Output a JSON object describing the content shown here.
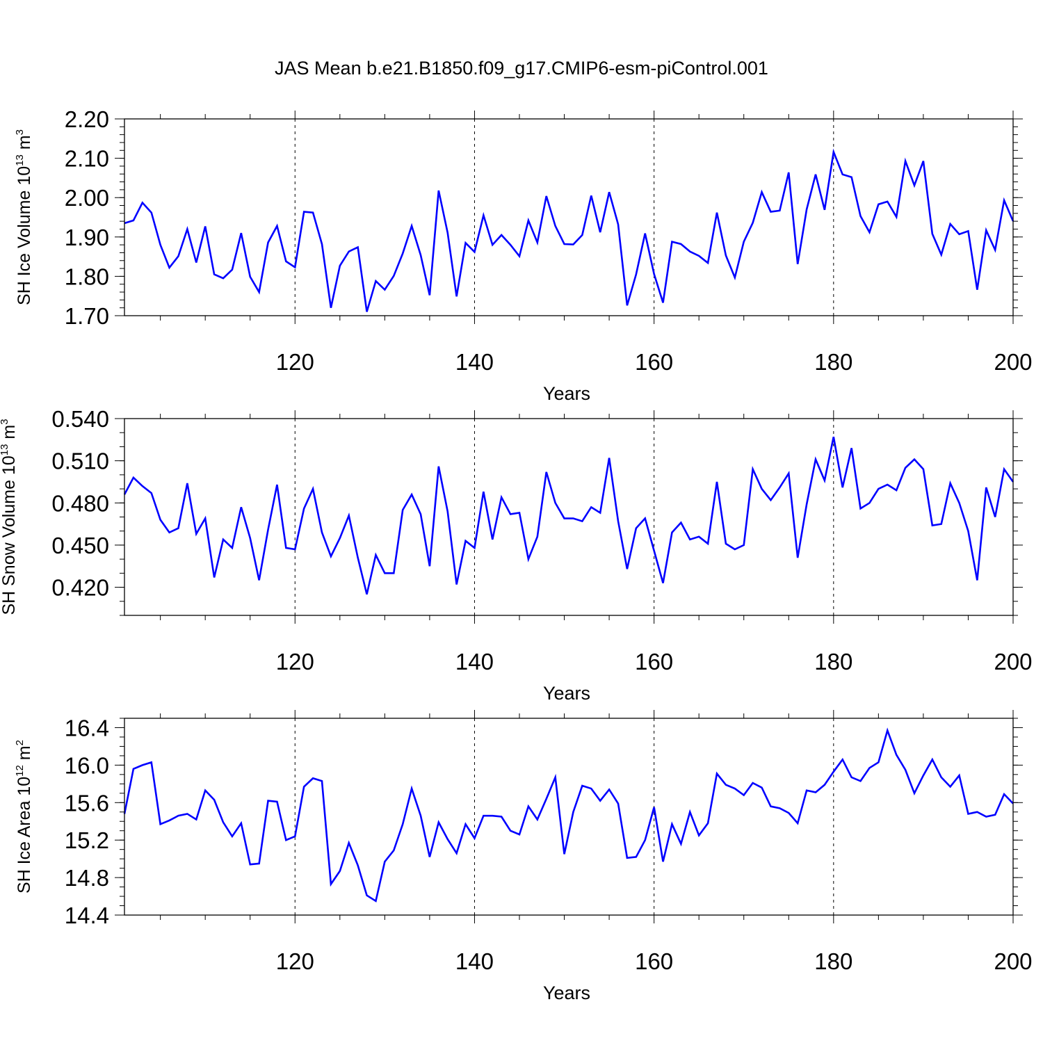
{
  "title": "JAS Mean b.e21.B1850.f09_g17.CMIP6-esm-piControl.001",
  "line_color": "#0000ff",
  "chart_data": [
    {
      "type": "line",
      "ylabel_parts": [
        "SH Ice Volume 10",
        "13",
        " m",
        "3"
      ],
      "xlabel": "Years",
      "xlim": [
        101,
        200
      ],
      "ylim": [
        1.7,
        2.2
      ],
      "x_ticks": [
        "120",
        "140",
        "160",
        "180",
        "200"
      ],
      "y_ticks": [
        "1.70",
        "1.80",
        "1.90",
        "2.00",
        "2.10",
        "2.20"
      ],
      "grid": "dashed vertical lines at 120, 140, 160, 180",
      "series": [
        {
          "name": "SH Ice Volume",
          "x_start": 101,
          "values": [
            1.935,
            1.942,
            1.987,
            1.962,
            1.88,
            1.822,
            1.851,
            1.92,
            1.835,
            1.927,
            1.805,
            1.795,
            1.817,
            1.91,
            1.799,
            1.76,
            1.886,
            1.928,
            1.838,
            1.823,
            1.964,
            1.962,
            1.882,
            1.72,
            1.827,
            1.863,
            1.874,
            1.71,
            1.788,
            1.766,
            1.801,
            1.858,
            1.928,
            1.854,
            1.752,
            2.018,
            1.911,
            1.749,
            1.885,
            1.862,
            1.955,
            1.88,
            1.905,
            1.88,
            1.851,
            1.942,
            1.886,
            2.004,
            1.928,
            1.882,
            1.881,
            1.905,
            2.005,
            1.912,
            2.014,
            1.932,
            1.726,
            1.805,
            1.909,
            1.806,
            1.733,
            1.888,
            1.882,
            1.863,
            1.852,
            1.834,
            1.962,
            1.853,
            1.797,
            1.888,
            1.936,
            2.014,
            1.964,
            1.967,
            2.064,
            1.831,
            1.97,
            2.059,
            1.969,
            2.116,
            2.059,
            2.052,
            1.953,
            1.912,
            1.983,
            1.99,
            1.951,
            2.093,
            2.031,
            2.093,
            1.908,
            1.855,
            1.933,
            1.907,
            1.915,
            1.766,
            1.917,
            1.867,
            1.993,
            1.94
          ]
        }
      ]
    },
    {
      "type": "line",
      "ylabel_parts": [
        "SH Snow Volume 10",
        "13",
        " m",
        "3"
      ],
      "xlabel": "Years",
      "xlim": [
        101,
        200
      ],
      "ylim": [
        0.4,
        0.54
      ],
      "x_ticks": [
        "120",
        "140",
        "160",
        "180",
        "200"
      ],
      "y_ticks": [
        "0.420",
        "0.450",
        "0.480",
        "0.510",
        "0.540"
      ],
      "grid": "dashed vertical lines at 120, 140, 160, 180",
      "series": [
        {
          "name": "SH Snow Volume",
          "x_start": 101,
          "values": [
            0.486,
            0.498,
            0.492,
            0.487,
            0.468,
            0.459,
            0.462,
            0.494,
            0.458,
            0.469,
            0.427,
            0.454,
            0.448,
            0.477,
            0.455,
            0.425,
            0.461,
            0.493,
            0.448,
            0.447,
            0.476,
            0.49,
            0.459,
            0.442,
            0.455,
            0.471,
            0.441,
            0.415,
            0.443,
            0.43,
            0.43,
            0.475,
            0.486,
            0.472,
            0.435,
            0.506,
            0.474,
            0.422,
            0.453,
            0.448,
            0.488,
            0.454,
            0.484,
            0.472,
            0.473,
            0.44,
            0.456,
            0.502,
            0.48,
            0.469,
            0.469,
            0.467,
            0.477,
            0.473,
            0.512,
            0.467,
            0.433,
            0.462,
            0.469,
            0.446,
            0.423,
            0.459,
            0.466,
            0.454,
            0.456,
            0.451,
            0.495,
            0.451,
            0.447,
            0.45,
            0.504,
            0.49,
            0.482,
            0.491,
            0.501,
            0.441,
            0.479,
            0.511,
            0.496,
            0.527,
            0.491,
            0.519,
            0.476,
            0.48,
            0.49,
            0.493,
            0.489,
            0.505,
            0.511,
            0.504,
            0.464,
            0.465,
            0.494,
            0.48,
            0.46,
            0.425,
            0.491,
            0.47,
            0.504,
            0.495
          ]
        }
      ]
    },
    {
      "type": "line",
      "ylabel_parts": [
        "SH Ice Area 10",
        "12",
        " m",
        "2"
      ],
      "xlabel": "Years",
      "xlim": [
        101,
        200
      ],
      "ylim": [
        14.4,
        16.5
      ],
      "x_ticks": [
        "120",
        "140",
        "160",
        "180",
        "200"
      ],
      "y_ticks": [
        "14.4",
        "14.8",
        "15.2",
        "15.6",
        "16.0",
        "16.4"
      ],
      "grid": "dashed vertical lines at 120, 140, 160, 180",
      "series": [
        {
          "name": "SH Ice Area",
          "x_start": 101,
          "values": [
            15.48,
            15.96,
            16.0,
            16.03,
            15.37,
            15.41,
            15.46,
            15.48,
            15.42,
            15.73,
            15.63,
            15.39,
            15.24,
            15.38,
            14.94,
            14.95,
            15.62,
            15.61,
            15.2,
            15.24,
            15.77,
            15.86,
            15.83,
            14.73,
            14.87,
            15.17,
            14.93,
            14.61,
            14.55,
            14.97,
            15.09,
            15.37,
            15.75,
            15.46,
            15.02,
            15.39,
            15.21,
            15.06,
            15.37,
            15.22,
            15.46,
            15.46,
            15.45,
            15.3,
            15.26,
            15.56,
            15.42,
            15.64,
            15.87,
            15.05,
            15.5,
            15.78,
            15.75,
            15.62,
            15.74,
            15.59,
            15.01,
            15.02,
            15.2,
            15.55,
            14.97,
            15.37,
            15.16,
            15.5,
            15.25,
            15.38,
            15.91,
            15.79,
            15.75,
            15.68,
            15.81,
            15.76,
            15.56,
            15.54,
            15.49,
            15.38,
            15.73,
            15.71,
            15.79,
            15.93,
            16.06,
            15.87,
            15.83,
            15.97,
            16.03,
            16.37,
            16.11,
            15.95,
            15.7,
            15.89,
            16.06,
            15.87,
            15.77,
            15.89,
            15.48,
            15.5,
            15.45,
            15.47,
            15.69,
            15.59
          ]
        }
      ]
    }
  ]
}
